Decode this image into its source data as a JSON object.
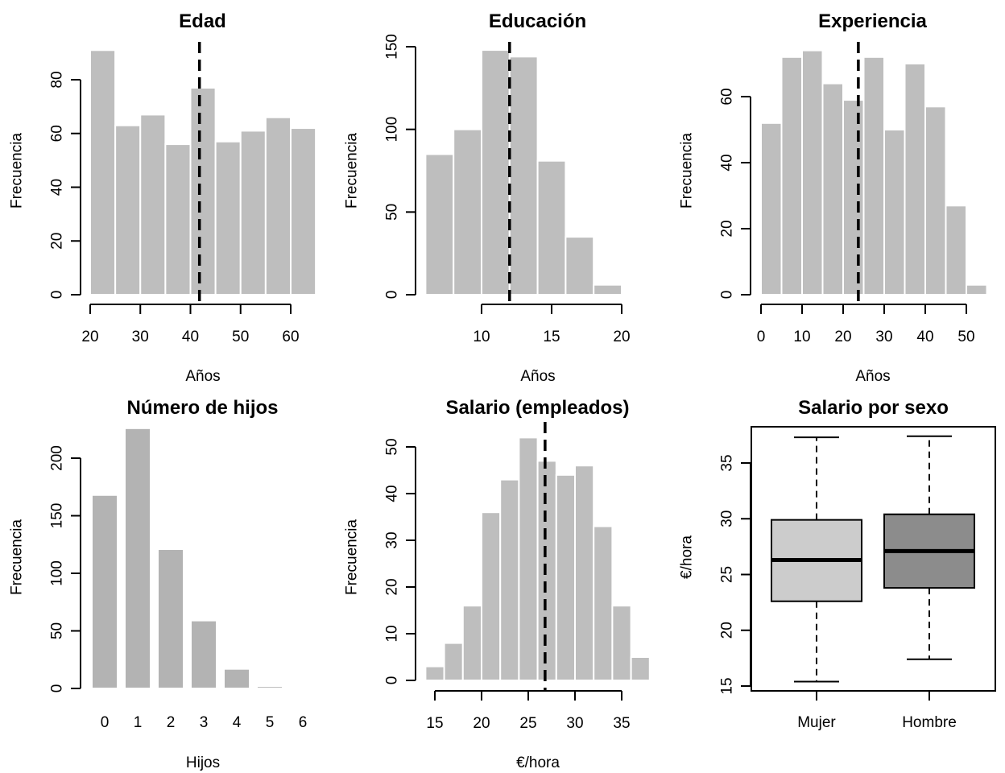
{
  "figure": {
    "layout": "2x3 grid",
    "bar_colors": {
      "histogram": "#bebebe",
      "counts": "#b3b3b3"
    },
    "box_colors": [
      "#cccccc",
      "#8c8c8c"
    ],
    "mean_line_color": "#000000"
  },
  "chart_data": [
    {
      "id": "edad",
      "type": "bar",
      "subtype": "histogram",
      "title": "Edad",
      "xlabel": "Años",
      "ylabel": "Frecuencia",
      "bins": [
        [
          20,
          25
        ],
        [
          25,
          30
        ],
        [
          30,
          35
        ],
        [
          35,
          40
        ],
        [
          40,
          45
        ],
        [
          45,
          50
        ],
        [
          50,
          55
        ],
        [
          55,
          60
        ],
        [
          60,
          65
        ]
      ],
      "values": [
        91,
        63,
        67,
        56,
        77,
        57,
        61,
        66,
        62
      ],
      "xlim": [
        20,
        65
      ],
      "ylim": [
        0,
        91
      ],
      "xticks": [
        20,
        30,
        40,
        50,
        60
      ],
      "xtick_labels": [
        "20",
        "30",
        "40",
        "50",
        "60"
      ],
      "yticks": [
        0,
        20,
        40,
        60,
        80
      ],
      "ytick_labels": [
        "0",
        "20",
        "40",
        "60",
        "80"
      ],
      "mean_line": {
        "x": 41.8,
        "style": "dashed"
      },
      "grid": false
    },
    {
      "id": "educacion",
      "type": "bar",
      "subtype": "histogram",
      "title": "Educación",
      "xlabel": "Años",
      "ylabel": "Frecuencia",
      "bins": [
        [
          6,
          8
        ],
        [
          8,
          10
        ],
        [
          10,
          12
        ],
        [
          12,
          14
        ],
        [
          14,
          16
        ],
        [
          16,
          18
        ],
        [
          18,
          20
        ],
        [
          20,
          22
        ]
      ],
      "values": [
        85,
        100,
        148,
        144,
        81,
        35,
        6,
        0
      ],
      "xlim": [
        6,
        22
      ],
      "ylim": [
        0,
        150
      ],
      "xticks": [
        10,
        15,
        20
      ],
      "xtick_labels": [
        "10",
        "15",
        "20"
      ],
      "yticks": [
        0,
        50,
        100,
        150
      ],
      "ytick_labels": [
        "0",
        "50",
        "100",
        "150"
      ],
      "mean_line": {
        "x": 12.0,
        "style": "dashed"
      },
      "grid": false
    },
    {
      "id": "experiencia",
      "type": "bar",
      "subtype": "histogram",
      "title": "Experiencia",
      "xlabel": "Años",
      "ylabel": "Frecuencia",
      "bins": [
        [
          0,
          5
        ],
        [
          5,
          10
        ],
        [
          10,
          15
        ],
        [
          15,
          20
        ],
        [
          20,
          25
        ],
        [
          25,
          30
        ],
        [
          30,
          35
        ],
        [
          35,
          40
        ],
        [
          40,
          45
        ],
        [
          45,
          50
        ],
        [
          50,
          55
        ]
      ],
      "values": [
        52,
        72,
        74,
        64,
        59,
        72,
        50,
        70,
        57,
        27,
        3
      ],
      "xlim": [
        0,
        55
      ],
      "ylim": [
        0,
        74
      ],
      "xticks": [
        0,
        10,
        20,
        30,
        40,
        50
      ],
      "xtick_labels": [
        "0",
        "10",
        "20",
        "30",
        "40",
        "50"
      ],
      "yticks": [
        0,
        20,
        40,
        60
      ],
      "ytick_labels": [
        "0",
        "20",
        "40",
        "60"
      ],
      "mean_line": {
        "x": 23.7,
        "style": "dashed"
      },
      "grid": false
    },
    {
      "id": "hijos",
      "type": "bar",
      "title": "Número de hijos",
      "xlabel": "Hijos",
      "ylabel": "Frecuencia",
      "categories": [
        "0",
        "1",
        "2",
        "3",
        "4",
        "5",
        "6"
      ],
      "values": [
        168,
        226,
        121,
        59,
        17,
        2,
        0
      ],
      "ylim": [
        0,
        226
      ],
      "yticks": [
        0,
        50,
        100,
        150,
        200
      ],
      "ytick_labels": [
        "0",
        "50",
        "100",
        "150",
        "200"
      ],
      "grid": false
    },
    {
      "id": "salario",
      "type": "bar",
      "subtype": "histogram",
      "title": "Salario (empleados)",
      "xlabel": "€/hora",
      "ylabel": "Frecuencia",
      "bins": [
        [
          14,
          16
        ],
        [
          16,
          18
        ],
        [
          18,
          20
        ],
        [
          20,
          22
        ],
        [
          22,
          24
        ],
        [
          24,
          26
        ],
        [
          26,
          28
        ],
        [
          28,
          30
        ],
        [
          30,
          32
        ],
        [
          32,
          34
        ],
        [
          34,
          36
        ],
        [
          36,
          38
        ]
      ],
      "values": [
        3,
        8,
        16,
        36,
        43,
        52,
        47,
        44,
        46,
        33,
        16,
        5
      ],
      "xlim": [
        14,
        38
      ],
      "ylim": [
        0,
        52
      ],
      "xticks": [
        15,
        20,
        25,
        30,
        35
      ],
      "xtick_labels": [
        "15",
        "20",
        "25",
        "30",
        "35"
      ],
      "yticks": [
        0,
        10,
        20,
        30,
        40,
        50
      ],
      "ytick_labels": [
        "0",
        "10",
        "20",
        "30",
        "40",
        "50"
      ],
      "mean_line": {
        "x": 26.8,
        "style": "dashed"
      },
      "grid": false
    },
    {
      "id": "salario_sexo",
      "type": "box",
      "title": "Salario por sexo",
      "xlabel": "",
      "ylabel": "€/hora",
      "categories": [
        "Mujer",
        "Hombre"
      ],
      "series": [
        {
          "name": "Mujer",
          "min": 15.4,
          "q1": 22.6,
          "median": 26.3,
          "q3": 29.9,
          "max": 37.3
        },
        {
          "name": "Hombre",
          "min": 17.4,
          "q1": 23.8,
          "median": 27.1,
          "q3": 30.4,
          "max": 37.4
        }
      ],
      "ylim": [
        14.5,
        38.3
      ],
      "yticks": [
        15,
        20,
        25,
        30,
        35
      ],
      "ytick_labels": [
        "15",
        "20",
        "25",
        "30",
        "35"
      ],
      "grid": false
    }
  ]
}
